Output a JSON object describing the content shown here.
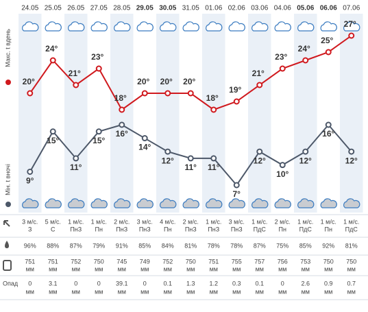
{
  "chart_data": {
    "type": "line",
    "categories": [
      "24.05",
      "25.05",
      "26.05",
      "27.05",
      "28.05",
      "29.05",
      "30.05",
      "31.05",
      "01.06",
      "02.06",
      "03.06",
      "04.06",
      "05.06",
      "06.06",
      "07.06"
    ],
    "category_colors": [
      "#555555",
      "#555555",
      "#555555",
      "#555555",
      "#555555",
      "#c8323c",
      "#c8323c",
      "#555555",
      "#555555",
      "#555555",
      "#555555",
      "#555555",
      "#c8323c",
      "#c8323c",
      "#555555"
    ],
    "series": [
      {
        "name": "Макс. t вдень",
        "color": "#d0191e",
        "values": [
          20,
          24,
          21,
          23,
          18,
          20,
          20,
          20,
          18,
          19,
          21,
          23,
          24,
          25,
          27
        ],
        "value_labels": [
          "20°",
          "24°",
          "21°",
          "23°",
          "18°",
          "20°",
          "20°",
          "20°",
          "18°",
          "19°",
          "21°",
          "23°",
          "24°",
          "25°",
          "27°"
        ]
      },
      {
        "name": "Мін. t вночі",
        "color": "#4d5869",
        "values": [
          9,
          15,
          11,
          15,
          16,
          14,
          12,
          11,
          11,
          7,
          12,
          10,
          12,
          16,
          12
        ],
        "value_labels": [
          "9°",
          "15°",
          "11°",
          "15°",
          "16°",
          "14°",
          "12°",
          "11°",
          "11°",
          "7°",
          "12°",
          "10°",
          "12°",
          "16°",
          "12°"
        ]
      }
    ]
  },
  "table": {
    "wind_speed": [
      "3 м/с.",
      "5 м/с.",
      "1 м/с.",
      "1 м/с.",
      "2 м/с.",
      "3 м/с.",
      "4 м/с.",
      "2 м/с.",
      "1 м/с.",
      "3 м/с.",
      "1 м/с.",
      "2 м/с.",
      "1 м/с.",
      "1 м/с.",
      "1 м/с."
    ],
    "wind_direction": [
      "З",
      "С",
      "ПнЗ",
      "Пн",
      "ПнЗ",
      "ПнЗ",
      "Пн",
      "ПнЗ",
      "ПнЗ",
      "ПнЗ",
      "ПдС",
      "Пн",
      "ПдС",
      "Пн",
      "ПдС"
    ],
    "humidity": [
      "96%",
      "88%",
      "87%",
      "79%",
      "91%",
      "85%",
      "84%",
      "81%",
      "78%",
      "78%",
      "87%",
      "75%",
      "85%",
      "92%",
      "81%"
    ],
    "pressure": [
      751,
      751,
      752,
      750,
      745,
      749,
      752,
      750,
      751,
      755,
      757,
      756,
      753,
      750,
      750
    ],
    "precipitation_label": "Опад",
    "precipitation": [
      0,
      3.1,
      0,
      0,
      39.1,
      0,
      0.1,
      1.3,
      1.2,
      0.3,
      0.1,
      0,
      2.6,
      0.9,
      0.7
    ],
    "unit": "мм"
  }
}
